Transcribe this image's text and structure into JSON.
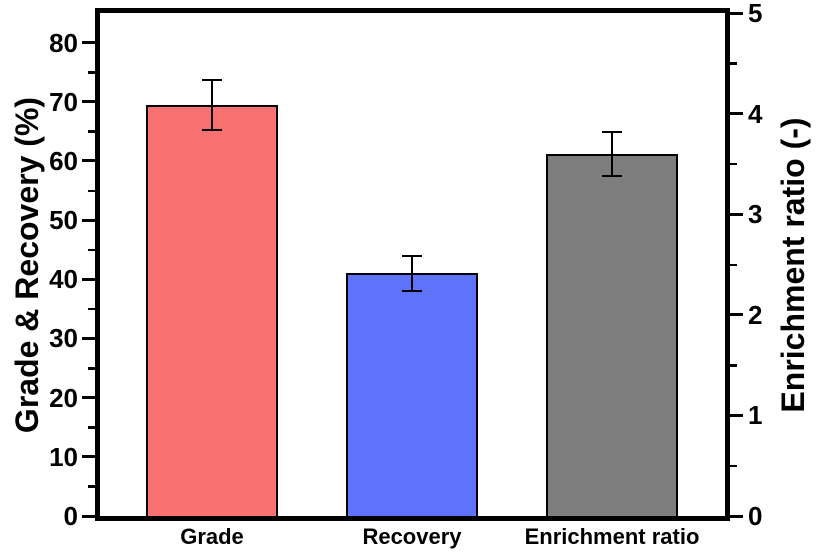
{
  "chart_data": {
    "type": "bar",
    "title": "",
    "categories": [
      "Grade",
      "Recovery",
      "Enrichment ratio"
    ],
    "bars": [
      {
        "category": "Grade",
        "value": 69.5,
        "error": 4.2,
        "axis": "left",
        "color": "#f97170"
      },
      {
        "category": "Recovery",
        "value": 41.0,
        "error": 3.0,
        "axis": "left",
        "color": "#5e72fc"
      },
      {
        "category": "Enrichment ratio",
        "value": 3.6,
        "error": 0.22,
        "axis": "right",
        "color": "#7e7e7e"
      }
    ],
    "left_axis": {
      "label": "Grade & Recovery (%)",
      "min": 0,
      "max": 85,
      "major_step": 10,
      "minor_step": 5,
      "last_major_tick": 80,
      "tick_labels": [
        "0",
        "10",
        "20",
        "30",
        "40",
        "50",
        "60",
        "70",
        "80"
      ]
    },
    "right_axis": {
      "label": "Enrichment ratio (-)",
      "min": 0,
      "max": 5,
      "major_step": 1,
      "minor_step": 0.5,
      "last_major_tick": 5,
      "tick_labels": [
        "0",
        "1",
        "2",
        "3",
        "4",
        "5"
      ]
    },
    "x_axis": {
      "tick_labels": [
        "Grade",
        "Recovery",
        "Enrichment ratio"
      ]
    },
    "colors": {
      "grade_bar": "#f97170",
      "recovery_bar": "#5e72fc",
      "enrichment_bar": "#7e7e7e",
      "axis": "#000000",
      "bar_border": "#000000",
      "background": "#ffffff"
    },
    "legend": {
      "visible": false
    },
    "grid": {
      "visible": false
    }
  }
}
